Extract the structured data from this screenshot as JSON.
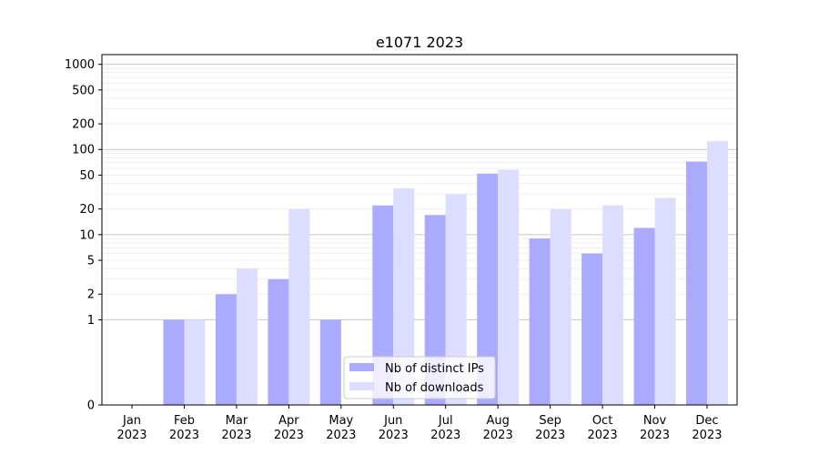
{
  "chart_data": {
    "type": "bar",
    "title": "e1071 2023",
    "categories": [
      "Jan\n2023",
      "Feb\n2023",
      "Mar\n2023",
      "Apr\n2023",
      "May\n2023",
      "Jun\n2023",
      "Jul\n2023",
      "Aug\n2023",
      "Sep\n2023",
      "Oct\n2023",
      "Nov\n2023",
      "Dec\n2023"
    ],
    "series": [
      {
        "name": "Nb of distinct IPs",
        "color": "#aaaaff",
        "values": [
          0,
          1,
          2,
          3,
          1,
          22,
          17,
          52,
          9,
          6,
          12,
          72
        ]
      },
      {
        "name": "Nb of downloads",
        "color": "#ddddff",
        "values": [
          0,
          1,
          4,
          20,
          0,
          35,
          30,
          58,
          20,
          22,
          27,
          125
        ]
      }
    ],
    "yscale": "symlog",
    "ylim": [
      0,
      1300
    ],
    "yticks": [
      0,
      1,
      2,
      5,
      10,
      20,
      50,
      100,
      200,
      500,
      1000
    ],
    "ytick_labels": [
      "0",
      "1",
      "2",
      "5",
      "10",
      "20",
      "50",
      "100",
      "200",
      "500",
      "1000"
    ],
    "grid": true,
    "legend": "lower-center",
    "xlabel": "",
    "ylabel": ""
  }
}
